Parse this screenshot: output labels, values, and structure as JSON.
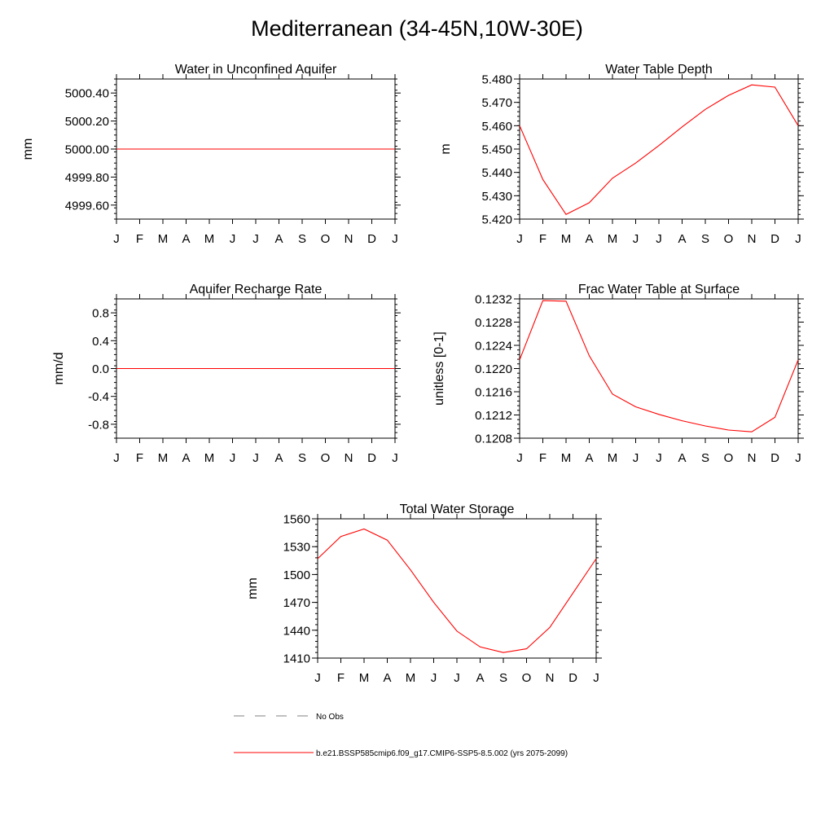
{
  "figure": {
    "title": "Mediterranean (34-45N,10W-30E)"
  },
  "legend": {
    "items": [
      {
        "label": "No Obs",
        "color": "#808080",
        "style": "dashed"
      },
      {
        "label": "b.e21.BSSP585cmip6.f09_g17.CMIP6-SSP5-8.5.002 (yrs 2075-2099)",
        "color": "#ff0000",
        "style": "solid"
      }
    ]
  },
  "chart_data": [
    {
      "type": "line",
      "title": "Water in Unconfined Aquifer",
      "xlabel": "",
      "ylabel": "mm",
      "categories": [
        "J",
        "F",
        "M",
        "A",
        "M",
        "J",
        "J",
        "A",
        "S",
        "O",
        "N",
        "D",
        "J"
      ],
      "ylim": [
        4999.5,
        5000.5
      ],
      "yticks": [
        4999.6,
        4999.8,
        5000.0,
        5000.2,
        5000.4
      ],
      "ytick_labels": [
        "4999.60",
        "4999.80",
        "5000.00",
        "5000.20",
        "5000.40"
      ],
      "series": [
        {
          "name": "b.e21.BSSP585cmip6.f09_g17.CMIP6-SSP5-8.5.002 (yrs 2075-2099)",
          "color": "#ff0000",
          "values": [
            5000,
            5000,
            5000,
            5000,
            5000,
            5000,
            5000,
            5000,
            5000,
            5000,
            5000,
            5000,
            5000
          ]
        }
      ]
    },
    {
      "type": "line",
      "title": "Water Table Depth",
      "xlabel": "",
      "ylabel": "m",
      "categories": [
        "J",
        "F",
        "M",
        "A",
        "M",
        "J",
        "J",
        "A",
        "S",
        "O",
        "N",
        "D",
        "J"
      ],
      "ylim": [
        5.42,
        5.48
      ],
      "yticks": [
        5.42,
        5.43,
        5.44,
        5.45,
        5.46,
        5.47,
        5.48
      ],
      "ytick_labels": [
        "5.420",
        "5.430",
        "5.440",
        "5.450",
        "5.460",
        "5.470",
        "5.480"
      ],
      "series": [
        {
          "name": "b.e21.BSSP585cmip6.f09_g17.CMIP6-SSP5-8.5.002 (yrs 2075-2099)",
          "color": "#ff0000",
          "values": [
            5.46,
            5.437,
            5.422,
            5.427,
            5.4375,
            5.444,
            5.4515,
            5.4595,
            5.467,
            5.473,
            5.4775,
            5.4765,
            5.46
          ]
        }
      ]
    },
    {
      "type": "line",
      "title": "Aquifer Recharge Rate",
      "xlabel": "",
      "ylabel": "mm/d",
      "categories": [
        "J",
        "F",
        "M",
        "A",
        "M",
        "J",
        "J",
        "A",
        "S",
        "O",
        "N",
        "D",
        "J"
      ],
      "ylim": [
        -1.0,
        1.0
      ],
      "yticks": [
        -0.8,
        -0.4,
        0.0,
        0.4,
        0.8
      ],
      "ytick_labels": [
        "-0.8",
        "-0.4",
        "0.0",
        "0.4",
        "0.8"
      ],
      "series": [
        {
          "name": "b.e21.BSSP585cmip6.f09_g17.CMIP6-SSP5-8.5.002 (yrs 2075-2099)",
          "color": "#ff0000",
          "values": [
            0,
            0,
            0,
            0,
            0,
            0,
            0,
            0,
            0,
            0,
            0,
            0,
            0
          ]
        }
      ]
    },
    {
      "type": "line",
      "title": "Frac Water Table at Surface",
      "xlabel": "",
      "ylabel": "unitless [0-1]",
      "categories": [
        "J",
        "F",
        "M",
        "A",
        "M",
        "J",
        "J",
        "A",
        "S",
        "O",
        "N",
        "D",
        "J"
      ],
      "ylim": [
        0.1208,
        0.1232
      ],
      "yticks": [
        0.1208,
        0.1212,
        0.1216,
        0.122,
        0.1224,
        0.1228,
        0.1232
      ],
      "ytick_labels": [
        "0.1208",
        "0.1212",
        "0.1216",
        "0.1220",
        "0.1224",
        "0.1228",
        "0.1232"
      ],
      "series": [
        {
          "name": "b.e21.BSSP585cmip6.f09_g17.CMIP6-SSP5-8.5.002 (yrs 2075-2099)",
          "color": "#ff0000",
          "values": [
            0.12215,
            0.12317,
            0.12316,
            0.12222,
            0.12156,
            0.12134,
            0.12121,
            0.1211,
            0.12101,
            0.12094,
            0.12091,
            0.12116,
            0.12215
          ]
        }
      ]
    },
    {
      "type": "line",
      "title": "Total Water Storage",
      "xlabel": "",
      "ylabel": "mm",
      "categories": [
        "J",
        "F",
        "M",
        "A",
        "M",
        "J",
        "J",
        "A",
        "S",
        "O",
        "N",
        "D",
        "J"
      ],
      "ylim": [
        1410,
        1560
      ],
      "yticks": [
        1410,
        1440,
        1470,
        1500,
        1530,
        1560
      ],
      "ytick_labels": [
        "1410",
        "1440",
        "1470",
        "1500",
        "1530",
        "1560"
      ],
      "series": [
        {
          "name": "b.e21.BSSP585cmip6.f09_g17.CMIP6-SSP5-8.5.002 (yrs 2075-2099)",
          "color": "#ff0000",
          "values": [
            1517,
            1541,
            1549,
            1537,
            1505,
            1470,
            1439,
            1422,
            1416,
            1420,
            1443,
            1480,
            1517
          ]
        }
      ]
    }
  ]
}
